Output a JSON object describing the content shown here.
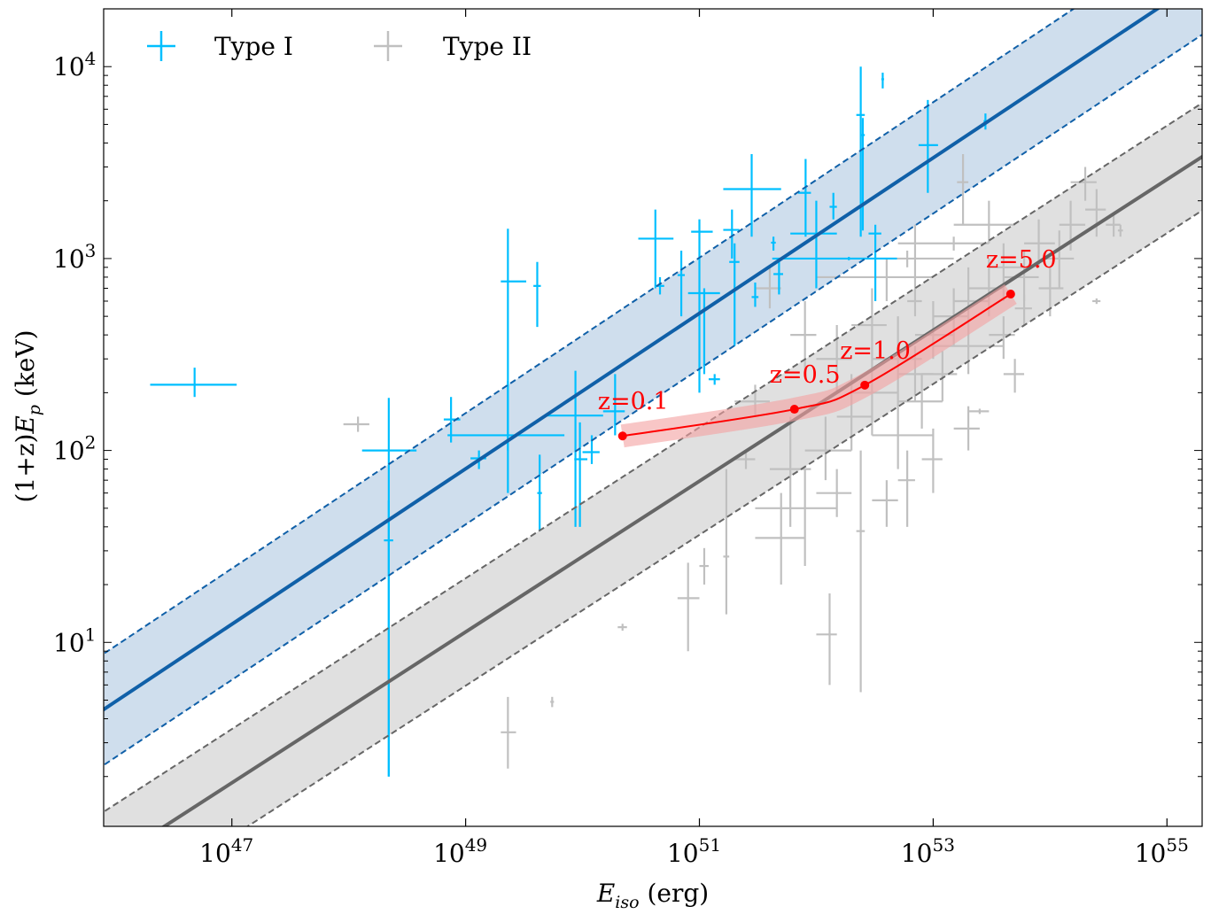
{
  "chart_data": {
    "type": "scatter",
    "xscale": "log",
    "yscale": "log",
    "xlim": [
      8e+45,
      2e+55
    ],
    "ylim": [
      1.1,
      20000
    ],
    "grid": false,
    "legend_placement": "top-left",
    "xlabel": {
      "symbol": "E",
      "sub": "iso",
      "unit": " (erg)"
    },
    "ylabel": {
      "prefix": "(1+z)",
      "symbol": "E",
      "sub": "p",
      "unit": " (keV)"
    },
    "x_ticks": [
      {
        "base": "10",
        "exp": "47",
        "value": 1e+47
      },
      {
        "base": "10",
        "exp": "49",
        "value": 1e+49
      },
      {
        "base": "10",
        "exp": "51",
        "value": 1e+51
      },
      {
        "base": "10",
        "exp": "53",
        "value": 1e+53
      },
      {
        "base": "10",
        "exp": "55",
        "value": 1e+55
      }
    ],
    "y_ticks": [
      {
        "base": "10",
        "exp": "1",
        "value": 10
      },
      {
        "base": "10",
        "exp": "2",
        "value": 100
      },
      {
        "base": "10",
        "exp": "3",
        "value": 1000
      },
      {
        "base": "10",
        "exp": "4",
        "value": 10000
      }
    ],
    "point_columns": [
      "Eiso",
      "Eiso_lo",
      "Eiso_hi",
      "Ep",
      "Ep_lo",
      "Ep_hi"
    ],
    "series": [
      {
        "name": "Type I",
        "color": "#00bfff",
        "points": [
          [
            4.8e+46,
            2e+46,
            1.1e+47,
            220,
            190,
            270
          ],
          [
            2.2e+48,
            1.3e+48,
            3.8e+48,
            100,
            2,
            188
          ],
          [
            2.2e+48,
            2e+48,
            2.4e+48,
            34,
            2,
            55
          ],
          [
            7.5e+48,
            6.5e+48,
            9e+48,
            145,
            110,
            190
          ],
          [
            1.3e+49,
            1.1e+49,
            1.5e+49,
            91,
            80,
            100
          ],
          [
            2.3e+49,
            2e+49,
            3.3e+49,
            760,
            100,
            1430
          ],
          [
            2.3e+49,
            7e+48,
            7e+49,
            120,
            60,
            230
          ],
          [
            4.1e+49,
            3.8e+49,
            4.4e+49,
            720,
            440,
            960
          ],
          [
            4.3e+49,
            4.1e+49,
            4.5e+49,
            60,
            38,
            95
          ],
          [
            8.7e+49,
            5e+49,
            1.5e+50,
            152,
            40,
            260
          ],
          [
            9.5e+49,
            8.5e+49,
            1.1e+50,
            90,
            40,
            140
          ],
          [
            1.2e+50,
            1e+50,
            1.4e+50,
            98,
            85,
            120
          ],
          [
            1.9e+50,
            1.5e+50,
            2.3e+50,
            160,
            120,
            250
          ],
          [
            4.2e+50,
            3e+50,
            6e+50,
            1270,
            700,
            1800
          ],
          [
            4.6e+50,
            4.2e+50,
            5e+50,
            720,
            650,
            800
          ],
          [
            7e+50,
            6.5e+50,
            7.5e+50,
            820,
            500,
            1100
          ],
          [
            1e+51,
            8.5e+50,
            1.3e+51,
            1380,
            200,
            1600
          ],
          [
            1.1e+51,
            8e+50,
            1.5e+51,
            660,
            250,
            700
          ],
          [
            1.35e+51,
            1.2e+51,
            1.5e+51,
            235,
            220,
            250
          ],
          [
            1.9e+51,
            1.6e+51,
            2.2e+51,
            1410,
            1000,
            1800
          ],
          [
            2e+51,
            1.8e+51,
            2.2e+51,
            960,
            350,
            1200
          ],
          [
            2.8e+51,
            1.6e+51,
            5e+51,
            2300,
            1300,
            3500
          ],
          [
            3e+51,
            2.8e+51,
            3.2e+51,
            630,
            560,
            750
          ],
          [
            4.3e+51,
            4.1e+51,
            4.5e+51,
            1210,
            1100,
            1300
          ],
          [
            4.8e+51,
            4.3e+51,
            5.2e+51,
            830,
            650,
            1000
          ],
          [
            8.1e+51,
            7e+51,
            9e+51,
            2200,
            1300,
            3300
          ],
          [
            1e+52,
            6e+51,
            1.5e+52,
            1350,
            700,
            2000
          ],
          [
            1.4e+52,
            1.3e+52,
            1.5e+52,
            1860,
            1600,
            2200
          ],
          [
            1.9e+52,
            4.2e+51,
            4.9e+52,
            1000,
            980,
            1020
          ],
          [
            2.4e+52,
            2.2e+52,
            2.6e+52,
            5600,
            1300,
            10000
          ],
          [
            2.5e+52,
            2.4e+52,
            2.6e+52,
            4400,
            1400,
            5400
          ],
          [
            3.2e+52,
            2.8e+52,
            3.6e+52,
            1350,
            600,
            1500
          ],
          [
            3.7e+52,
            3.6e+52,
            3.8e+52,
            8600,
            7700,
            9300
          ],
          [
            9e+52,
            7.5e+52,
            1.1e+53,
            3900,
            2200,
            6700
          ],
          [
            2.8e+53,
            2.7e+53,
            2.9e+53,
            5200,
            4700,
            5700
          ]
        ]
      },
      {
        "name": "Type II",
        "color": "#c0c0c0",
        "points": [
          [
            1.2e+48,
            9e+47,
            1.5e+48,
            137,
            125,
            150
          ],
          [
            2.3e+49,
            2e+49,
            2.7e+49,
            3.4,
            2.2,
            5.2
          ],
          [
            5.5e+49,
            5.3e+49,
            5.7e+49,
            4.9,
            4.6,
            5.2
          ],
          [
            2.2e+50,
            2e+50,
            2.4e+50,
            12,
            11.5,
            12.5
          ],
          [
            8e+50,
            6.5e+50,
            1e+51,
            17,
            9,
            26
          ],
          [
            1.1e+51,
            1e+51,
            1.2e+51,
            25,
            20,
            31
          ],
          [
            1.7e+51,
            1.6e+51,
            1.8e+51,
            28,
            14,
            80
          ],
          [
            1.3e+52,
            1e+52,
            1.5e+52,
            11,
            6,
            18
          ],
          [
            2.4e+52,
            2.2e+52,
            2.6e+52,
            38,
            5.5,
            100
          ],
          [
            8e+51,
            3e+51,
            1.5e+52,
            50,
            25,
            80
          ],
          [
            5e+51,
            3e+51,
            8e+51,
            35,
            20,
            60
          ],
          [
            6e+51,
            4e+51,
            9e+51,
            80,
            40,
            150
          ],
          [
            1.2e+52,
            8e+51,
            2e+52,
            100,
            70,
            150
          ],
          [
            2e+52,
            1.5e+52,
            3e+52,
            150,
            100,
            250
          ],
          [
            3e+52,
            2e+52,
            5e+52,
            200,
            120,
            300
          ],
          [
            5e+52,
            3e+52,
            8e+52,
            300,
            200,
            500
          ],
          [
            7e+52,
            5e+52,
            1e+53,
            250,
            180,
            350
          ],
          [
            1e+53,
            7e+52,
            1.5e+53,
            400,
            300,
            600
          ],
          [
            1.5e+53,
            1e+53,
            2e+53,
            500,
            350,
            700
          ],
          [
            2e+53,
            1.5e+53,
            3e+53,
            600,
            400,
            900
          ],
          [
            3e+53,
            2e+53,
            4e+53,
            700,
            500,
            1000
          ],
          [
            4e+53,
            3e+53,
            6e+53,
            900,
            600,
            1200
          ],
          [
            6e+53,
            4e+53,
            8e+53,
            800,
            600,
            1100
          ],
          [
            8e+53,
            6e+53,
            1.1e+54,
            1200,
            900,
            1600
          ],
          [
            1.2e+54,
            9e+53,
            1.6e+54,
            1000,
            700,
            1400
          ],
          [
            1.5e+54,
            1.2e+54,
            2e+54,
            1500,
            1100,
            2000
          ],
          [
            2e+54,
            1.5e+54,
            2.5e+54,
            2500,
            2000,
            3000
          ],
          [
            2.5e+54,
            2e+54,
            3e+54,
            1800,
            1300,
            2300
          ],
          [
            3.5e+54,
            3e+54,
            4e+54,
            1500,
            1300,
            1700
          ],
          [
            4e+52,
            1e+52,
            1e+53,
            800,
            600,
            1000
          ],
          [
            6e+52,
            2e+52,
            1.5e+53,
            1000,
            900,
            1100
          ],
          [
            1.5e+53,
            5e+52,
            3e+53,
            1200,
            1100,
            1300
          ],
          [
            3e+53,
            1.5e+53,
            5e+53,
            1500,
            1200,
            2000
          ],
          [
            2e+53,
            1e+53,
            4e+53,
            350,
            250,
            500
          ],
          [
            5e+52,
            3e+52,
            1e+53,
            120,
            80,
            200
          ],
          [
            8e+52,
            5e+52,
            1.2e+53,
            180,
            130,
            250
          ],
          [
            1.2e+53,
            8e+52,
            1.6e+53,
            250,
            180,
            330
          ],
          [
            3e+52,
            2e+52,
            4e+52,
            450,
            300,
            700
          ],
          [
            1.5e+52,
            1e+52,
            2e+52,
            300,
            200,
            450
          ],
          [
            8e+51,
            6e+51,
            1e+52,
            400,
            250,
            600
          ],
          [
            4e+51,
            3e+51,
            5e+51,
            700,
            550,
            900
          ],
          [
            3e+51,
            2e+51,
            4e+51,
            180,
            150,
            220
          ],
          [
            2.5e+51,
            2e+51,
            3e+51,
            90,
            80,
            100
          ],
          [
            4e+53,
            3e+53,
            5e+53,
            400,
            300,
            500
          ],
          [
            6e+53,
            5e+53,
            7e+53,
            550,
            450,
            650
          ],
          [
            1e+54,
            8e+53,
            1.3e+54,
            700,
            500,
            900
          ],
          [
            5e+53,
            4e+53,
            6e+53,
            250,
            200,
            300
          ],
          [
            2.5e+53,
            2e+53,
            3e+53,
            160,
            155,
            165
          ],
          [
            6e+52,
            5e+52,
            7e+52,
            70,
            40,
            100
          ],
          [
            1e+53,
            8e+52,
            1.2e+53,
            90,
            60,
            130
          ],
          [
            2e+53,
            1.5e+53,
            2.5e+53,
            130,
            100,
            170
          ],
          [
            4e+52,
            3e+52,
            5e+52,
            55,
            40,
            70
          ],
          [
            1.5e+52,
            1e+52,
            2e+52,
            60,
            45,
            80
          ],
          [
            7e+52,
            6e+52,
            8e+52,
            600,
            500,
            1500
          ],
          [
            1.8e+53,
            1.6e+53,
            2e+53,
            2500,
            1500,
            3500
          ],
          [
            2.5e+54,
            2.3e+54,
            2.7e+54,
            600,
            580,
            620
          ],
          [
            4e+54,
            3.8e+54,
            4.2e+54,
            1400,
            1300,
            1500
          ]
        ]
      }
    ],
    "fits": [
      {
        "group": "Type I",
        "slope": 0.405,
        "Ep_at_1e50": 204,
        "scatter_dex": 0.29,
        "line_color": "#1060a8",
        "band_color": "#cfdeed"
      },
      {
        "group": "Type II",
        "slope": 0.393,
        "Ep_at_1e50": 28,
        "scatter_dex": 0.28,
        "line_color": "#666666",
        "band_color": "#e0e0e0"
      }
    ],
    "redshift_track": {
      "color": "#ff0000",
      "band_color": "#f4a0a0",
      "points": [
        {
          "label": "z=0.1",
          "Eiso": 2.2e+50,
          "Ep": 119
        },
        {
          "label": "z=0.5",
          "Eiso": 6.5e+51,
          "Ep": 164
        },
        {
          "label": "z=1.0",
          "Eiso": 2.6e+52,
          "Ep": 219
        },
        {
          "label": "z=5.0",
          "Eiso": 4.6e+53,
          "Ep": 653
        }
      ]
    }
  }
}
